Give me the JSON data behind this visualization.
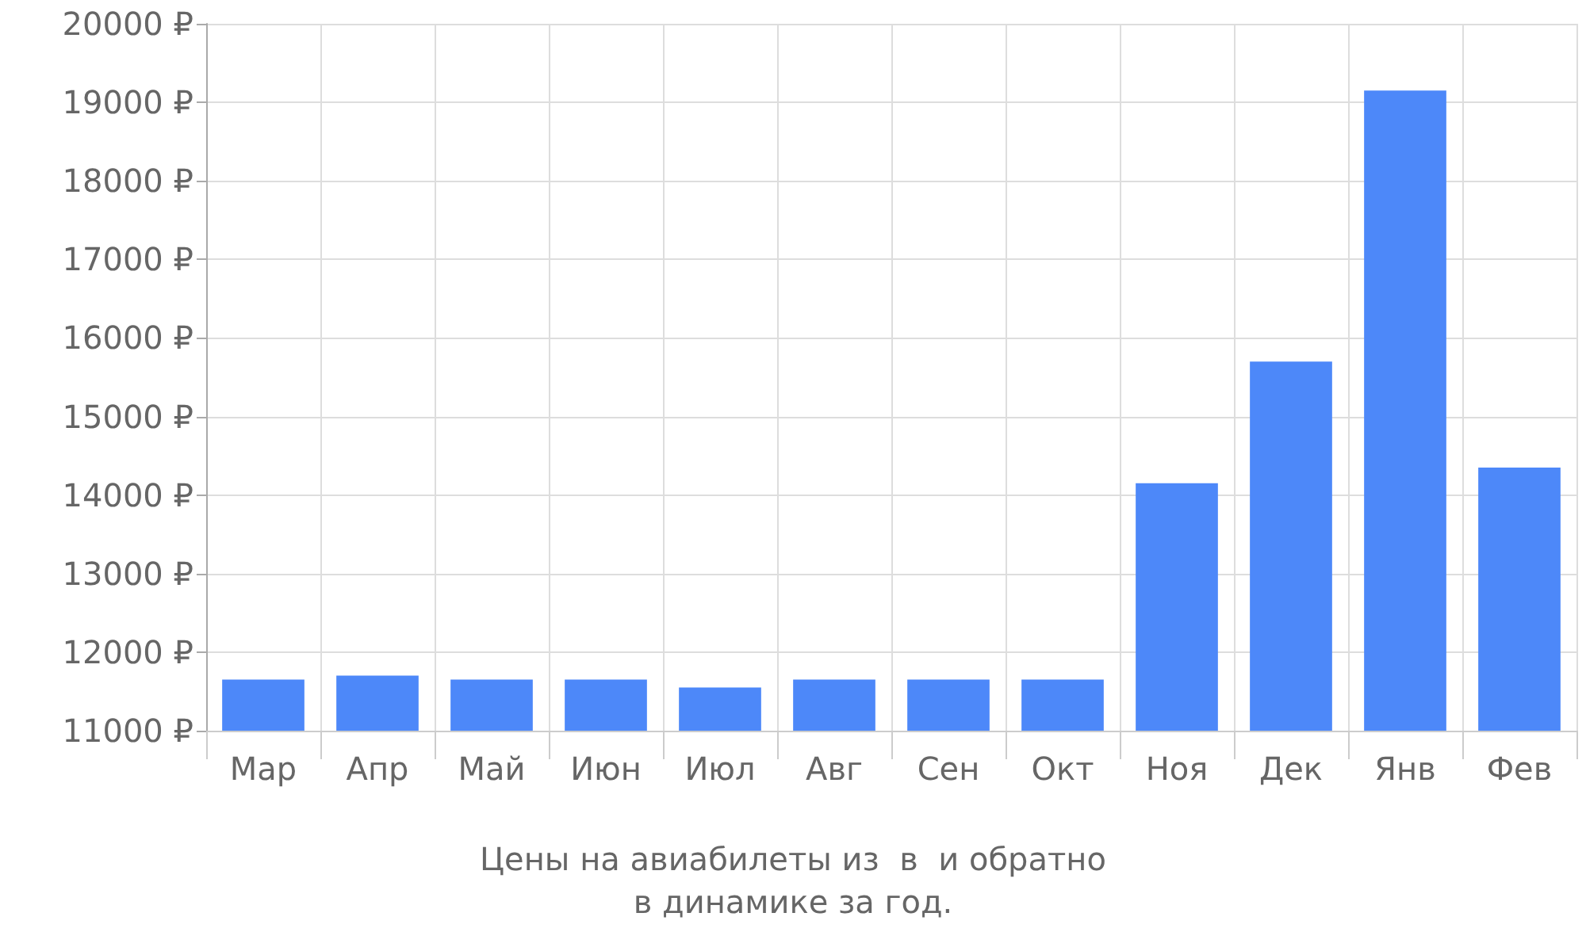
{
  "chart_data": {
    "type": "bar",
    "categories": [
      "Мар",
      "Апр",
      "Май",
      "Июн",
      "Июл",
      "Авг",
      "Сен",
      "Окт",
      "Ноя",
      "Дек",
      "Янв",
      "Фев"
    ],
    "values": [
      11650,
      11700,
      11650,
      11650,
      11550,
      11650,
      11650,
      11650,
      14150,
      15700,
      19150,
      14350
    ],
    "color": "#4d88f9",
    "ylim": [
      11000,
      20000
    ],
    "yticks": [
      {
        "value": 11000,
        "label": "11000 ₽"
      },
      {
        "value": 12000,
        "label": "12000 ₽"
      },
      {
        "value": 13000,
        "label": "13000 ₽"
      },
      {
        "value": 14000,
        "label": "14000 ₽"
      },
      {
        "value": 15000,
        "label": "15000 ₽"
      },
      {
        "value": 16000,
        "label": "16000 ₽"
      },
      {
        "value": 17000,
        "label": "17000 ₽"
      },
      {
        "value": 18000,
        "label": "18000 ₽"
      },
      {
        "value": 19000,
        "label": "19000 ₽"
      },
      {
        "value": 20000,
        "label": "20000 ₽"
      }
    ],
    "grid": true,
    "annotations": [
      "Цены на авиабилеты из  в  и обратно",
      "в динамике за год."
    ]
  }
}
